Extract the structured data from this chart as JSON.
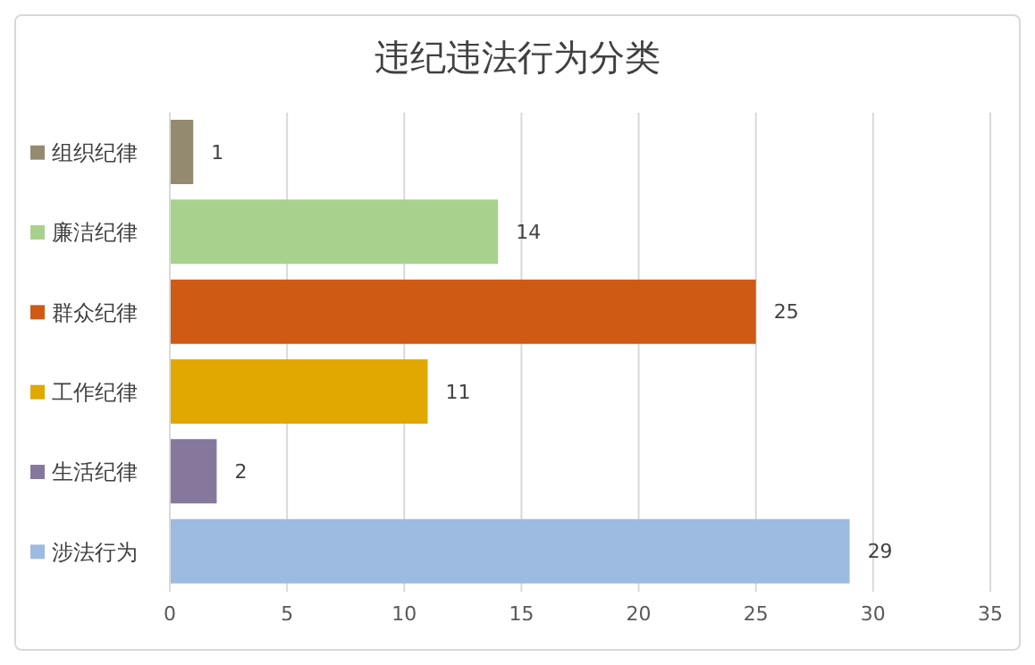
{
  "chart_data": {
    "type": "bar",
    "orientation": "horizontal",
    "title": "违纪违法行为分类",
    "categories": [
      "组织纪律",
      "廉洁纪律",
      "群众纪律",
      "工作纪律",
      "生活纪律",
      "涉法行为"
    ],
    "values": [
      1,
      14,
      25,
      11,
      2,
      29
    ],
    "colors": [
      "#948a6f",
      "#a9d18e",
      "#cf5a14",
      "#e0a800",
      "#86789c",
      "#9dbbe0"
    ],
    "xlim": [
      0,
      35
    ],
    "xticks": [
      0,
      5,
      10,
      15,
      20,
      25,
      30,
      35
    ],
    "grid": "x",
    "data_labels": true
  }
}
